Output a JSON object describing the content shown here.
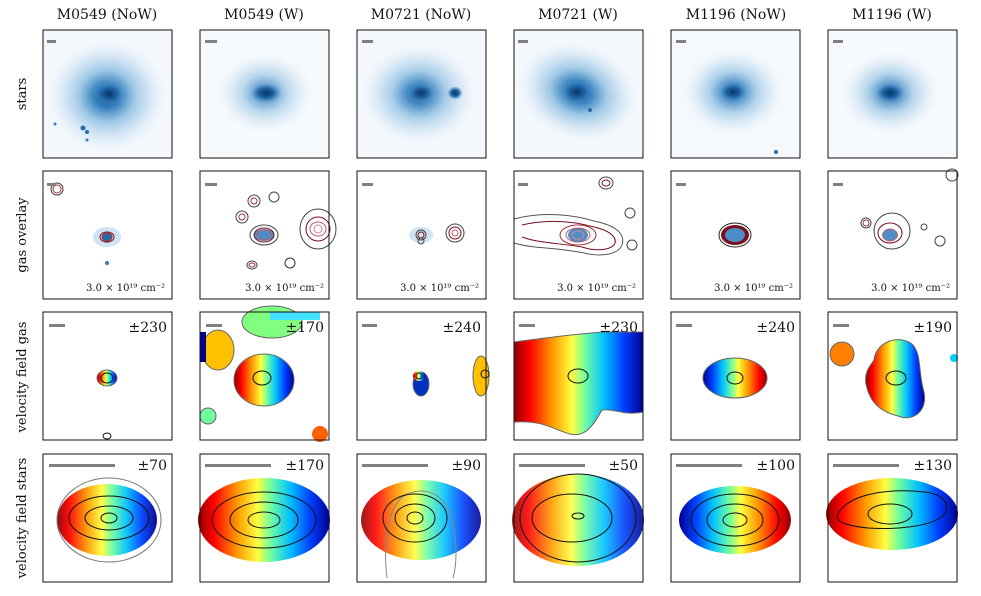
{
  "figure": {
    "columns": [
      "M0549 (NoW)",
      "M0549 (W)",
      "M0721 (NoW)",
      "M0721 (W)",
      "M1196 (NoW)",
      "M1196 (W)"
    ],
    "rows": [
      "stars",
      "gas overlay",
      "velocity field gas",
      "velocity field stars"
    ],
    "gas_overlay_label": "3.0 × 10¹⁹ cm⁻²",
    "velocity_gas_labels": [
      "±230",
      "±170",
      "±240",
      "±230",
      "±240",
      "±190"
    ],
    "velocity_star_labels": [
      "±70",
      "±170",
      "±90",
      "±50",
      "±100",
      "±130"
    ]
  },
  "colors": {
    "stars_dark": "#1f5f99",
    "stars_light": "#9ec8e6",
    "contour_dark": "#7a0f1f",
    "contour_mid": "#c0606a",
    "scale_bar": "#808080",
    "jet_blue": "#00008f",
    "jet_red": "#8f0000"
  }
}
